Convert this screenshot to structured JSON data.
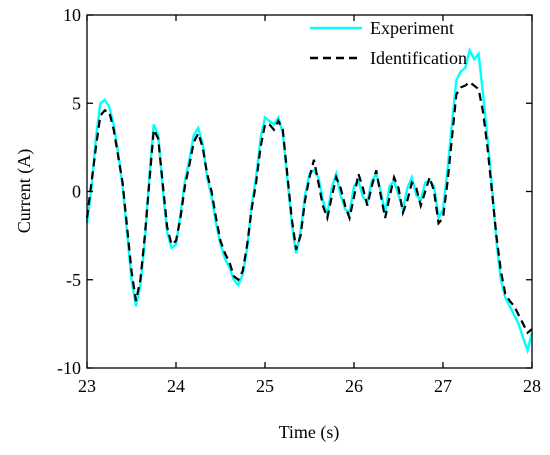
{
  "chart_data": {
    "type": "line",
    "xlabel": "Time (s)",
    "ylabel": "Current (A)",
    "x": [
      23,
      23.05,
      23.1,
      23.15,
      23.2,
      23.25,
      23.3,
      23.35,
      23.4,
      23.45,
      23.5,
      23.55,
      23.6,
      23.65,
      23.7,
      23.75,
      23.8,
      23.85,
      23.9,
      23.95,
      24,
      24.05,
      24.1,
      24.15,
      24.2,
      24.25,
      24.3,
      24.35,
      24.4,
      24.45,
      24.5,
      24.55,
      24.6,
      24.65,
      24.7,
      24.75,
      24.8,
      24.85,
      24.9,
      24.95,
      25,
      25.05,
      25.1,
      25.15,
      25.2,
      25.25,
      25.3,
      25.35,
      25.4,
      25.45,
      25.5,
      25.55,
      25.6,
      25.65,
      25.7,
      25.75,
      25.8,
      25.85,
      25.9,
      25.95,
      26,
      26.05,
      26.1,
      26.15,
      26.2,
      26.25,
      26.3,
      26.35,
      26.4,
      26.45,
      26.5,
      26.55,
      26.6,
      26.65,
      26.7,
      26.75,
      26.8,
      26.85,
      26.9,
      26.95,
      27,
      27.05,
      27.1,
      27.15,
      27.2,
      27.25,
      27.3,
      27.35,
      27.4,
      27.45,
      27.5,
      27.55,
      27.6,
      27.65,
      27.7,
      27.75,
      27.8,
      27.85,
      27.9,
      27.95,
      28
    ],
    "series": [
      {
        "name": "Experiment",
        "color": "#00ffff",
        "dash": false,
        "values": [
          -1.8,
          0.2,
          3.0,
          5.0,
          5.2,
          4.8,
          3.8,
          2.2,
          0.3,
          -2.3,
          -5.0,
          -6.5,
          -5.3,
          -2.8,
          0.8,
          3.8,
          3.2,
          0.2,
          -2.3,
          -3.2,
          -3.0,
          -1.3,
          0.6,
          1.8,
          3.2,
          3.6,
          2.7,
          0.8,
          -0.3,
          -1.8,
          -3.0,
          -3.8,
          -4.3,
          -5.0,
          -5.3,
          -4.7,
          -3.2,
          -0.8,
          0.8,
          3.0,
          4.2,
          4.0,
          3.8,
          4.2,
          3.3,
          0.8,
          -1.8,
          -3.5,
          -2.3,
          -0.2,
          1.0,
          1.2,
          0.8,
          -0.5,
          -1.3,
          0.2,
          1.0,
          -0.2,
          -1.0,
          -1.2,
          0.3,
          0.6,
          -0.3,
          -0.6,
          0.6,
          1.0,
          0.0,
          -1.2,
          0.3,
          0.6,
          -0.2,
          -1.0,
          0.2,
          0.8,
          -0.2,
          -0.5,
          0.5,
          0.6,
          0.3,
          -1.5,
          -1.0,
          1.2,
          3.8,
          6.3,
          6.8,
          7.0,
          8.0,
          7.5,
          7.8,
          5.5,
          3.0,
          0.3,
          -2.8,
          -5.0,
          -6.0,
          -6.5,
          -7.0,
          -7.5,
          -8.3,
          -9.0,
          -8.0
        ]
      },
      {
        "name": "Identification",
        "color": "#000000",
        "dash": true,
        "values": [
          -1.5,
          0.5,
          2.5,
          4.3,
          4.6,
          4.5,
          3.5,
          2.0,
          0.5,
          -2,
          -4.5,
          -6.2,
          -5,
          -2.5,
          0.5,
          3.5,
          3.0,
          0.5,
          -2,
          -3,
          -2.8,
          -1.5,
          0.3,
          1.5,
          2.8,
          3.3,
          2.5,
          1.0,
          0.0,
          -1.5,
          -2.8,
          -3.5,
          -4,
          -4.8,
          -5,
          -4.5,
          -3,
          -1,
          0.5,
          2.5,
          3.8,
          3.8,
          3.5,
          4.0,
          3.5,
          1.0,
          -1.5,
          -3.3,
          -2.5,
          -0.5,
          0.8,
          1.8,
          0.5,
          -0.8,
          -1.5,
          -0.3,
          0.8,
          0.2,
          -0.8,
          -1.5,
          -0.3,
          1.0,
          0.2,
          -0.8,
          0.3,
          1.2,
          -0.2,
          -1.5,
          -0.3,
          0.8,
          0.2,
          -1.2,
          -0.5,
          0.5,
          0.2,
          -0.8,
          0.0,
          0.8,
          0.0,
          -1.8,
          -1.5,
          0.5,
          3.0,
          5.5,
          5.9,
          6.0,
          6.2,
          6.0,
          5.8,
          4.5,
          2.5,
          0.0,
          -2.5,
          -4.5,
          -5.8,
          -6.2,
          -6.5,
          -7.0,
          -7.5,
          -8.0,
          -7.8
        ]
      }
    ],
    "xlim": [
      23,
      28
    ],
    "xticks": [
      23,
      24,
      25,
      26,
      27,
      28
    ],
    "ylim": [
      -10,
      10
    ],
    "yticks": [
      -10,
      -5,
      0,
      5,
      10
    ],
    "legend": "upper right"
  }
}
